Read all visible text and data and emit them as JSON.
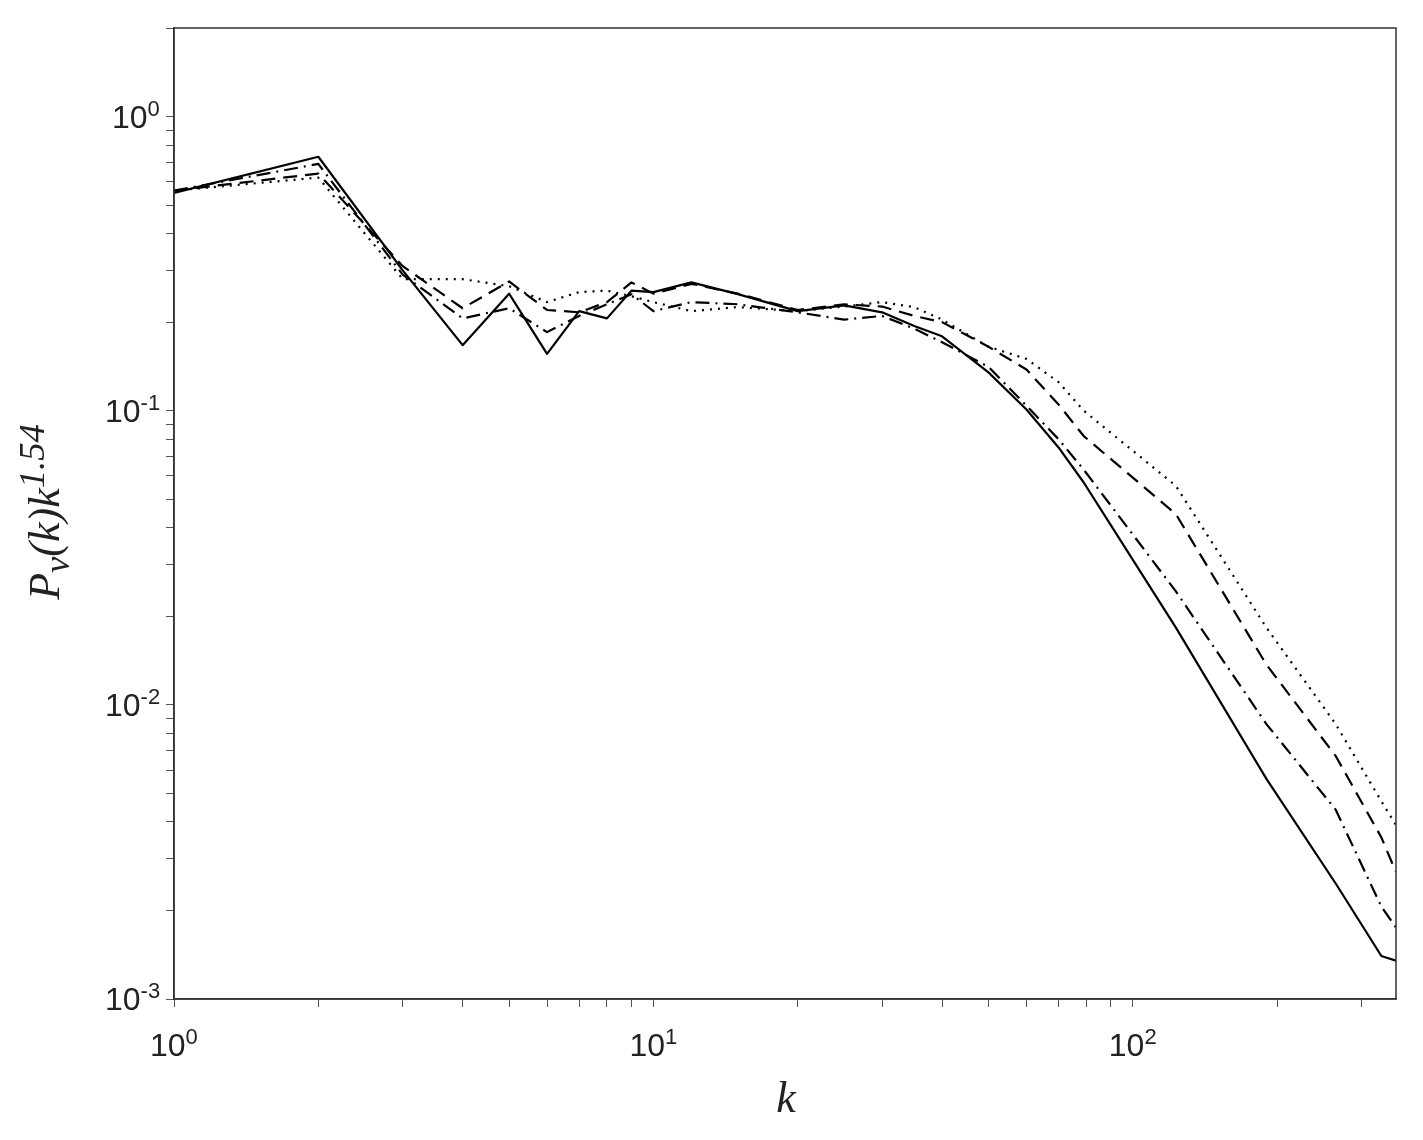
{
  "chart_data": {
    "type": "line",
    "xlabel": "k",
    "ylabel": "P$_{v}$(k)k$^{1.54}$",
    "log": "xy",
    "grid": false,
    "legend": false,
    "marker": "none",
    "x": [
      1,
      2,
      3,
      4,
      5,
      6,
      7,
      8,
      9,
      10,
      12,
      15,
      20,
      25,
      30,
      35,
      40,
      50,
      60,
      70,
      79,
      123,
      190,
      265,
      330,
      354
    ],
    "xlim": [
      1,
      354
    ],
    "ylim": [
      0.001,
      2
    ],
    "xticks": [
      {
        "value": 1,
        "label": "10$^{0}$"
      },
      {
        "value": 2,
        "label": null
      },
      {
        "value": 3,
        "label": null
      },
      {
        "value": 4,
        "label": null
      },
      {
        "value": 5,
        "label": null
      },
      {
        "value": 6,
        "label": null
      },
      {
        "value": 7,
        "label": null
      },
      {
        "value": 8,
        "label": null
      },
      {
        "value": 9,
        "label": null
      },
      {
        "value": 10,
        "label": "10$^{1}$"
      },
      {
        "value": 20,
        "label": null
      },
      {
        "value": 30,
        "label": null
      },
      {
        "value": 40,
        "label": null
      },
      {
        "value": 50,
        "label": null
      },
      {
        "value": 60,
        "label": null
      },
      {
        "value": 70,
        "label": null
      },
      {
        "value": 80,
        "label": null
      },
      {
        "value": 90,
        "label": null
      },
      {
        "value": 100,
        "label": "10$^{2}$"
      },
      {
        "value": 200,
        "label": null
      },
      {
        "value": 300,
        "label": null
      }
    ],
    "yticks": [
      {
        "value": 0.001,
        "label": "10$^{-3}$"
      },
      {
        "value": 0.002,
        "label": null
      },
      {
        "value": 0.003,
        "label": null
      },
      {
        "value": 0.004,
        "label": null
      },
      {
        "value": 0.005,
        "label": null
      },
      {
        "value": 0.006,
        "label": null
      },
      {
        "value": 0.007,
        "label": null
      },
      {
        "value": 0.008,
        "label": null
      },
      {
        "value": 0.009,
        "label": null
      },
      {
        "value": 0.01,
        "label": "10$^{-2}$"
      },
      {
        "value": 0.02,
        "label": null
      },
      {
        "value": 0.03,
        "label": null
      },
      {
        "value": 0.04,
        "label": null
      },
      {
        "value": 0.05,
        "label": null
      },
      {
        "value": 0.06,
        "label": null
      },
      {
        "value": 0.07,
        "label": null
      },
      {
        "value": 0.08,
        "label": null
      },
      {
        "value": 0.09,
        "label": null
      },
      {
        "value": 0.1,
        "label": "10$^{-1}$"
      },
      {
        "value": 0.2,
        "label": null
      },
      {
        "value": 0.3,
        "label": null
      },
      {
        "value": 0.4,
        "label": null
      },
      {
        "value": 0.5,
        "label": null
      },
      {
        "value": 0.6,
        "label": null
      },
      {
        "value": 0.7,
        "label": null
      },
      {
        "value": 0.8,
        "label": null
      },
      {
        "value": 0.9,
        "label": null
      },
      {
        "value": 1,
        "label": "10$^{0}$"
      },
      {
        "value": 2,
        "label": null
      }
    ],
    "series": [
      {
        "color": "#000000",
        "line_style": "solid",
        "values": [
          0.55,
          0.73,
          0.3,
          0.167,
          0.25,
          0.156,
          0.218,
          0.206,
          0.256,
          0.253,
          0.273,
          0.249,
          0.218,
          0.228,
          0.216,
          0.194,
          0.179,
          0.135,
          0.101,
          0.075,
          0.057,
          0.0183,
          0.0056,
          0.00247,
          0.0014,
          0.00135
        ]
      },
      {
        "color": "#000000",
        "line_style": "dashed",
        "values": [
          0.56,
          0.64,
          0.31,
          0.223,
          0.275,
          0.22,
          0.216,
          0.234,
          0.273,
          0.25,
          0.27,
          0.25,
          0.22,
          0.23,
          0.226,
          0.21,
          0.2,
          0.165,
          0.138,
          0.105,
          0.082,
          0.0445,
          0.0137,
          0.0067,
          0.00354,
          0.0027
        ]
      },
      {
        "color": "#000000",
        "line_style": "dashdot",
        "values": [
          0.56,
          0.69,
          0.29,
          0.206,
          0.223,
          0.185,
          0.21,
          0.23,
          0.249,
          0.218,
          0.234,
          0.23,
          0.216,
          0.204,
          0.21,
          0.19,
          0.171,
          0.141,
          0.104,
          0.08,
          0.063,
          0.0243,
          0.0086,
          0.0044,
          0.00206,
          0.00175
        ]
      },
      {
        "color": "#000000",
        "line_style": "dotted",
        "values": [
          0.56,
          0.62,
          0.28,
          0.28,
          0.265,
          0.234,
          0.253,
          0.256,
          0.245,
          0.234,
          0.218,
          0.225,
          0.218,
          0.226,
          0.234,
          0.225,
          0.204,
          0.165,
          0.15,
          0.125,
          0.1,
          0.0555,
          0.0183,
          0.0086,
          0.0047,
          0.0039
        ]
      }
    ]
  }
}
